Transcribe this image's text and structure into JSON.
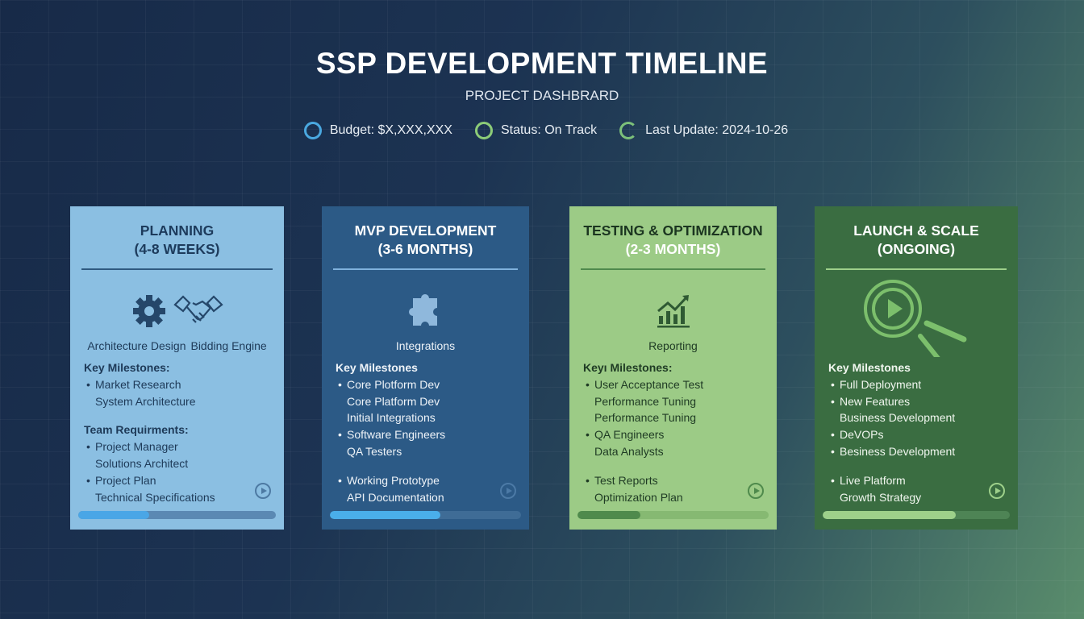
{
  "header": {
    "title": "SSP DEVELOPMENT TIMELINE",
    "subtitle": "PROJECT DASHBRARD",
    "stats": [
      {
        "label": "Budget: $X,XXX,XXX",
        "color": "#4aa8e0"
      },
      {
        "label": "Status: On Track",
        "color": "#8ccc78"
      },
      {
        "label": "Last Update: 2024-10-26",
        "color": "#7cc07a"
      }
    ]
  },
  "colors": {
    "card1": "#8bbfe2",
    "card2": "#2c5a86",
    "card3": "#9ccb86",
    "card4": "#3a6d41"
  },
  "cards": [
    {
      "title": "PLANNING",
      "duration": "(4-8 WEEKS)",
      "icons": [
        "gear-icon",
        "handshake-icon"
      ],
      "icon_labels": [
        "Architecture Design",
        "Bidding Engine"
      ],
      "progress": 0.36,
      "groups": [
        {
          "heading": "Key Milestones:",
          "lines": [
            {
              "t": "Market Research",
              "b": true
            },
            {
              "t": "System Architecture",
              "b": false
            }
          ]
        },
        {
          "heading": "Team Requirments:",
          "lines": [
            {
              "t": "Project Manager",
              "b": true
            },
            {
              "t": "Solutions Architect",
              "b": false
            },
            {
              "t": "Project Plan",
              "b": true
            },
            {
              "t": "Technical Specifications",
              "b": false
            }
          ]
        }
      ]
    },
    {
      "title": "MVP DEVELOPMENT",
      "duration": "(3-6 MONTHS)",
      "icons": [
        "puzzle-icon"
      ],
      "icon_labels": [
        "Integrations"
      ],
      "progress": 0.58,
      "groups": [
        {
          "heading": "Key Milestones",
          "lines": [
            {
              "t": "Core Plotform Dev",
              "b": true
            },
            {
              "t": "Core Platform Dev",
              "b": false
            },
            {
              "t": "Initial Integrations",
              "b": false
            },
            {
              "t": "Software Engineers",
              "b": true
            },
            {
              "t": "QA Testers",
              "b": false
            }
          ]
        },
        {
          "heading": "",
          "lines": [
            {
              "t": "Working Prototype",
              "b": true
            },
            {
              "t": "API Documentation",
              "b": false
            }
          ]
        }
      ]
    },
    {
      "title": "TESTING & OPTIMIZATION",
      "duration": "(2-3 MONTHS)",
      "icons": [
        "chart-growth-icon"
      ],
      "icon_labels": [
        "Reporting"
      ],
      "progress": 0.33,
      "groups": [
        {
          "heading": "Keyı Milestones:",
          "lines": [
            {
              "t": "User Acceptance Test",
              "b": true
            },
            {
              "t": "Performance Tuning",
              "b": false
            },
            {
              "t": "Performance Tuning",
              "b": false
            },
            {
              "t": "QA Engineers",
              "b": true
            },
            {
              "t": "Data Analysts",
              "b": false
            }
          ]
        },
        {
          "heading": "",
          "lines": [
            {
              "t": "Test Reports",
              "b": true
            },
            {
              "t": "Optimization Plan",
              "b": false
            }
          ]
        }
      ]
    },
    {
      "title": "LAUNCH & SCALE",
      "duration": "(ONGOING)",
      "icons": [
        "magnifier-play-icon"
      ],
      "icon_labels": [],
      "progress": 0.71,
      "groups": [
        {
          "heading": "Key Milestones",
          "lines": [
            {
              "t": "Full Deployment",
              "b": true
            },
            {
              "t": "New Features",
              "b": true
            },
            {
              "t": "Business Development",
              "b": false
            },
            {
              "t": "DeVOPs",
              "b": true
            },
            {
              "t": "Besiness Development",
              "b": true
            }
          ]
        },
        {
          "heading": "",
          "lines": [
            {
              "t": "Live Platform",
              "b": true
            },
            {
              "t": "Growth Strategy",
              "b": false
            }
          ]
        }
      ]
    }
  ]
}
